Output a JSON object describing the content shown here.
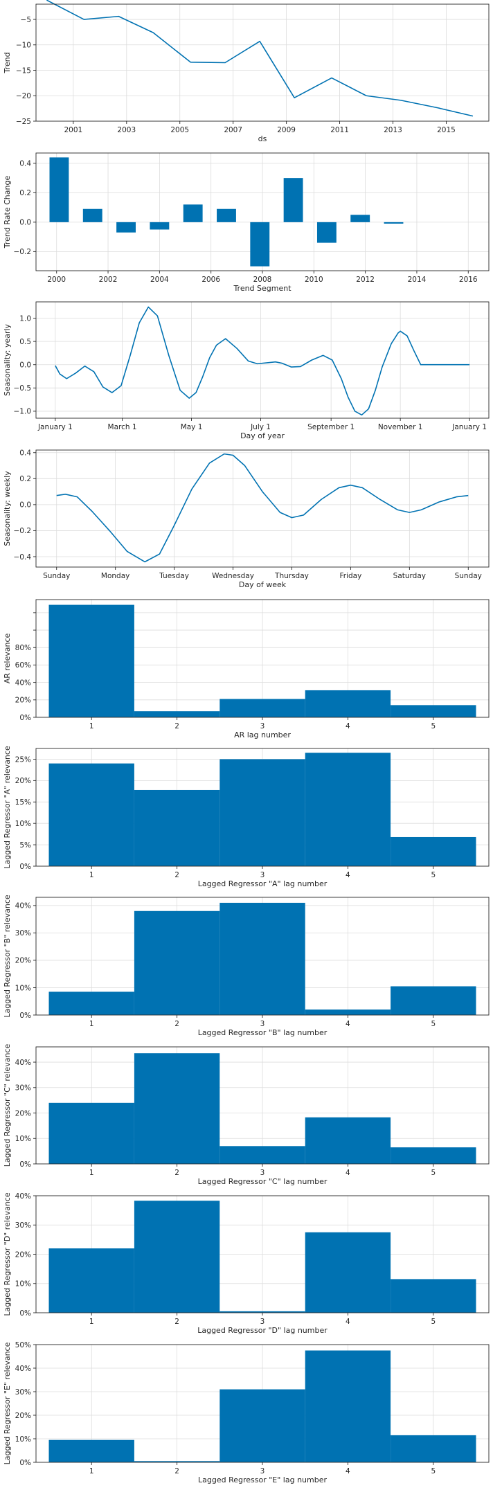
{
  "colors": {
    "series": "#0072B2",
    "grid": "#dcdcdc",
    "axis": "#262626"
  },
  "chart_data": [
    {
      "id": "trend",
      "type": "line",
      "xlabel": "ds",
      "ylabel": "Trend",
      "xlim": [
        1999.6,
        2016.6
      ],
      "ylim": [
        -25,
        -2
      ],
      "xticks": [
        2001,
        2003,
        2005,
        2007,
        2009,
        2011,
        2013,
        2015
      ],
      "xtick_labels": [
        "2001",
        "2003",
        "2005",
        "2007",
        "2009",
        "2011",
        "2013",
        "2015"
      ],
      "yticks": [
        -25,
        -20,
        -15,
        -10,
        -5
      ],
      "ytick_labels": [
        "−25",
        "−20",
        "−15",
        "−10",
        "−5"
      ],
      "grid": true,
      "x": [
        2000.0,
        2001.4,
        2002.7,
        2004.0,
        2005.4,
        2006.7,
        2008.0,
        2009.3,
        2010.7,
        2012.0,
        2013.3,
        2014.7,
        2016.0
      ],
      "y": [
        -1.2,
        -5.0,
        -4.4,
        -7.6,
        -13.4,
        -13.5,
        -9.3,
        -20.4,
        -16.5,
        -20.0,
        -20.9,
        -22.4,
        -24.0
      ]
    },
    {
      "id": "trend-rate-change",
      "type": "bar",
      "xlabel": "Trend Segment",
      "ylabel": "Trend Rate Change",
      "xlim": [
        1999.2,
        2016.8
      ],
      "ylim": [
        -0.33,
        0.47
      ],
      "xticks": [
        2000,
        2002,
        2004,
        2006,
        2008,
        2010,
        2012,
        2014,
        2016
      ],
      "xtick_labels": [
        "2000",
        "2002",
        "2004",
        "2006",
        "2008",
        "2010",
        "2012",
        "2014",
        "2016"
      ],
      "yticks": [
        -0.2,
        0.0,
        0.2,
        0.4
      ],
      "ytick_labels": [
        "−0.2",
        "0.0",
        "0.2",
        "0.4"
      ],
      "grid": true,
      "bar_width": 0.75,
      "x": [
        2000.1,
        2001.4,
        2002.7,
        2004.0,
        2005.3,
        2006.6,
        2007.9,
        2009.2,
        2010.5,
        2011.8,
        2013.1
      ],
      "values": [
        0.44,
        0.09,
        -0.07,
        -0.05,
        0.12,
        0.09,
        -0.3,
        0.3,
        -0.14,
        0.05,
        -0.01
      ]
    },
    {
      "id": "seasonality-yearly",
      "type": "line",
      "xlabel": "Day of year",
      "ylabel": "Seasonality: yearly",
      "xlim": [
        -17,
        382
      ],
      "ylim": [
        -1.15,
        1.35
      ],
      "xticks": [
        0,
        59,
        120,
        181,
        243,
        304,
        365
      ],
      "xtick_labels": [
        "January 1",
        "March 1",
        "May 1",
        "July 1",
        "September 1",
        "November 1",
        "January 1"
      ],
      "yticks": [
        -1.0,
        -0.5,
        0.0,
        0.5,
        1.0
      ],
      "ytick_labels": [
        "−1.0",
        "−0.5",
        "0.0",
        "0.5",
        "1.0"
      ],
      "grid": true,
      "x": [
        0,
        4,
        10,
        18,
        26,
        34,
        42,
        50,
        58,
        66,
        74,
        82,
        90,
        100,
        110,
        118,
        124,
        130,
        136,
        142,
        150,
        160,
        170,
        178,
        186,
        194,
        200,
        208,
        216,
        226,
        236,
        244,
        252,
        258,
        264,
        270,
        276,
        282,
        288,
        296,
        302,
        304,
        310,
        316,
        322,
        328,
        334,
        340,
        346,
        352,
        358,
        365
      ],
      "y": [
        -0.02,
        -0.2,
        -0.3,
        -0.18,
        -0.03,
        -0.15,
        -0.48,
        -0.6,
        -0.45,
        0.2,
        0.9,
        1.24,
        1.05,
        0.2,
        -0.55,
        -0.72,
        -0.6,
        -0.25,
        0.15,
        0.42,
        0.56,
        0.35,
        0.08,
        0.02,
        0.04,
        0.06,
        0.03,
        -0.05,
        -0.04,
        0.1,
        0.2,
        0.1,
        -0.3,
        -0.7,
        -1.0,
        -1.08,
        -0.95,
        -0.55,
        -0.05,
        0.45,
        0.68,
        0.72,
        0.62,
        0.3,
        0.0,
        0.0,
        0.0,
        0.0,
        0.0,
        0.0,
        0.0,
        0.0
      ]
    },
    {
      "id": "seasonality-weekly",
      "type": "line",
      "xlabel": "Day of week",
      "ylabel": "Seasonality: weekly",
      "xlim": [
        -0.35,
        7.35
      ],
      "ylim": [
        -0.48,
        0.42
      ],
      "xticks": [
        0,
        1,
        2,
        3,
        4,
        5,
        6,
        7
      ],
      "xtick_labels": [
        "Sunday",
        "Monday",
        "Tuesday",
        "Wednesday",
        "Thursday",
        "Friday",
        "Saturday",
        "Sunday"
      ],
      "yticks": [
        -0.4,
        -0.2,
        0.0,
        0.2,
        0.4
      ],
      "ytick_labels": [
        "−0.4",
        "−0.2",
        "0.0",
        "0.2",
        "0.4"
      ],
      "grid": true,
      "x": [
        0,
        0.15,
        0.35,
        0.6,
        0.9,
        1.2,
        1.5,
        1.75,
        2.0,
        2.3,
        2.6,
        2.85,
        3.0,
        3.2,
        3.5,
        3.8,
        4.0,
        4.2,
        4.5,
        4.8,
        5.0,
        5.2,
        5.5,
        5.8,
        6.0,
        6.2,
        6.5,
        6.8,
        7.0
      ],
      "y": [
        0.07,
        0.08,
        0.06,
        -0.05,
        -0.2,
        -0.36,
        -0.44,
        -0.38,
        -0.16,
        0.12,
        0.32,
        0.39,
        0.38,
        0.3,
        0.1,
        -0.06,
        -0.1,
        -0.08,
        0.04,
        0.13,
        0.15,
        0.13,
        0.04,
        -0.04,
        -0.06,
        -0.04,
        0.02,
        0.06,
        0.07
      ]
    },
    {
      "id": "ar-relevance",
      "type": "bar",
      "xlabel": "AR lag number",
      "ylabel": "AR relevance",
      "xlim": [
        0.35,
        5.65
      ],
      "ylim": [
        0,
        1.35
      ],
      "xticks": [
        1,
        2,
        3,
        4,
        5
      ],
      "xtick_labels": [
        "1",
        "2",
        "3",
        "4",
        "5"
      ],
      "yticks": [
        0,
        0.2,
        0.4,
        0.6,
        0.8,
        1.0,
        1.2
      ],
      "ytick_labels": [
        "0%",
        "20%",
        "40%",
        "60%",
        "80%",
        "",
        ""
      ],
      "grid": true,
      "bar_width": 1.0,
      "categories": [
        "1",
        "2",
        "3",
        "4",
        "5"
      ],
      "values": [
        1.29,
        0.07,
        0.21,
        0.31,
        0.14
      ]
    },
    {
      "id": "lagged-regressor-a",
      "type": "bar",
      "xlabel": "Lagged Regressor \"A\" lag number",
      "ylabel": "Lagged Regressor \"A\" relevance",
      "xlim": [
        0.35,
        5.65
      ],
      "ylim": [
        0,
        0.275
      ],
      "xticks": [
        1,
        2,
        3,
        4,
        5
      ],
      "xtick_labels": [
        "1",
        "2",
        "3",
        "4",
        "5"
      ],
      "yticks": [
        0,
        0.05,
        0.1,
        0.15,
        0.2,
        0.25
      ],
      "ytick_labels": [
        "0%",
        "5%",
        "10%",
        "15%",
        "20%",
        "25%"
      ],
      "grid": true,
      "bar_width": 1.0,
      "categories": [
        "1",
        "2",
        "3",
        "4",
        "5"
      ],
      "values": [
        0.24,
        0.178,
        0.25,
        0.265,
        0.068
      ]
    },
    {
      "id": "lagged-regressor-b",
      "type": "bar",
      "xlabel": "Lagged Regressor \"B\" lag number",
      "ylabel": "Lagged Regressor \"B\" relevance",
      "xlim": [
        0.35,
        5.65
      ],
      "ylim": [
        0,
        0.43
      ],
      "xticks": [
        1,
        2,
        3,
        4,
        5
      ],
      "xtick_labels": [
        "1",
        "2",
        "3",
        "4",
        "5"
      ],
      "yticks": [
        0,
        0.1,
        0.2,
        0.3,
        0.4
      ],
      "ytick_labels": [
        "0%",
        "10%",
        "20%",
        "30%",
        "40%"
      ],
      "grid": true,
      "bar_width": 1.0,
      "categories": [
        "1",
        "2",
        "3",
        "4",
        "5"
      ],
      "values": [
        0.085,
        0.38,
        0.41,
        0.02,
        0.105
      ]
    },
    {
      "id": "lagged-regressor-c",
      "type": "bar",
      "xlabel": "Lagged Regressor \"C\" lag number",
      "ylabel": "Lagged Regressor \"C\" relevance",
      "xlim": [
        0.35,
        5.65
      ],
      "ylim": [
        0,
        0.46
      ],
      "xticks": [
        1,
        2,
        3,
        4,
        5
      ],
      "xtick_labels": [
        "1",
        "2",
        "3",
        "4",
        "5"
      ],
      "yticks": [
        0,
        0.1,
        0.2,
        0.3,
        0.4
      ],
      "ytick_labels": [
        "0%",
        "10%",
        "20%",
        "30%",
        "40%"
      ],
      "grid": true,
      "bar_width": 1.0,
      "categories": [
        "1",
        "2",
        "3",
        "4",
        "5"
      ],
      "values": [
        0.24,
        0.435,
        0.07,
        0.183,
        0.065
      ]
    },
    {
      "id": "lagged-regressor-d",
      "type": "bar",
      "xlabel": "Lagged Regressor \"D\" lag number",
      "ylabel": "Lagged Regressor \"D\" relevance",
      "xlim": [
        0.35,
        5.65
      ],
      "ylim": [
        0,
        0.4
      ],
      "xticks": [
        1,
        2,
        3,
        4,
        5
      ],
      "xtick_labels": [
        "1",
        "2",
        "3",
        "4",
        "5"
      ],
      "yticks": [
        0,
        0.1,
        0.2,
        0.3,
        0.4
      ],
      "ytick_labels": [
        "0%",
        "10%",
        "20%",
        "30%",
        "40%"
      ],
      "grid": true,
      "bar_width": 1.0,
      "categories": [
        "1",
        "2",
        "3",
        "4",
        "5"
      ],
      "values": [
        0.22,
        0.383,
        0.005,
        0.275,
        0.115
      ]
    },
    {
      "id": "lagged-regressor-e",
      "type": "bar",
      "xlabel": "Lagged Regressor \"E\" lag number",
      "ylabel": "Lagged Regressor \"E\" relevance",
      "xlim": [
        0.35,
        5.65
      ],
      "ylim": [
        0,
        0.5
      ],
      "xticks": [
        1,
        2,
        3,
        4,
        5
      ],
      "xtick_labels": [
        "1",
        "2",
        "3",
        "4",
        "5"
      ],
      "yticks": [
        0,
        0.1,
        0.2,
        0.3,
        0.4,
        0.5
      ],
      "ytick_labels": [
        "0%",
        "10%",
        "20%",
        "30%",
        "40%",
        "50%"
      ],
      "grid": true,
      "bar_width": 1.0,
      "categories": [
        "1",
        "2",
        "3",
        "4",
        "5"
      ],
      "values": [
        0.095,
        0.005,
        0.31,
        0.475,
        0.115
      ]
    }
  ]
}
